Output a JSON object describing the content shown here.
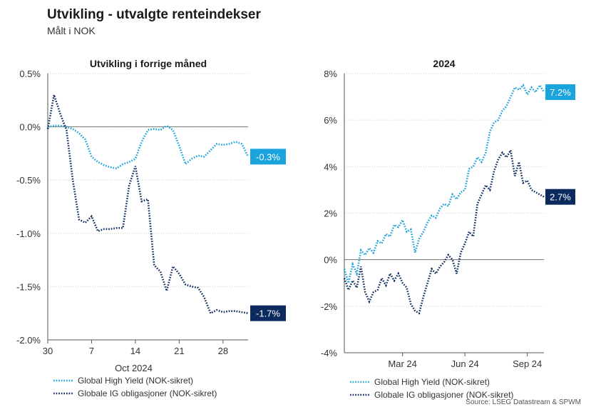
{
  "title": "Utvikling - utvalgte renteindekser",
  "subtitle": "Målt i NOK",
  "source": "Source: LSEG Datastream & SPWM",
  "colors": {
    "hy": "#1aa3dd",
    "ig": "#0b2a5e",
    "grid": "#cccccc",
    "zero": "#777777"
  },
  "chart_data": [
    {
      "type": "line",
      "title": "Utvikling i forrige måned",
      "xlabel": "Oct 2024",
      "ylabel": "",
      "ylim": [
        -2.0,
        0.5
      ],
      "xlim": [
        0,
        32
      ],
      "y_ticks": [
        0.5,
        0.0,
        -0.5,
        -1.0,
        -1.5,
        -2.0
      ],
      "y_tick_labels": [
        "0.5%",
        "0.0%",
        "-0.5%",
        "-1.0%",
        "-1.5%",
        "-2.0%"
      ],
      "x_ticks": [
        0,
        7,
        14,
        21,
        28
      ],
      "x_tick_labels": [
        "30",
        "7",
        "14",
        "21",
        "28"
      ],
      "series": [
        {
          "name": "Global High Yield (NOK-sikret)",
          "color": "#1aa3dd",
          "end_label": "-0.3%",
          "x": [
            0,
            1,
            2,
            3,
            4,
            5,
            6,
            7,
            8,
            9,
            10,
            11,
            12,
            13,
            14,
            15,
            16,
            17,
            18,
            19,
            20,
            21,
            22,
            23,
            24,
            25,
            26,
            27,
            28,
            29,
            30,
            31,
            32
          ],
          "y": [
            0.0,
            0.01,
            0.01,
            0.0,
            -0.02,
            -0.06,
            -0.12,
            -0.28,
            -0.33,
            -0.36,
            -0.38,
            -0.39,
            -0.35,
            -0.33,
            -0.3,
            -0.14,
            -0.03,
            -0.02,
            -0.03,
            0.01,
            -0.03,
            -0.18,
            -0.35,
            -0.3,
            -0.27,
            -0.28,
            -0.22,
            -0.16,
            -0.17,
            -0.16,
            -0.14,
            -0.16,
            -0.28
          ]
        },
        {
          "name": "Globale IG obligasjoner (NOK-sikret)",
          "color": "#0b2a5e",
          "end_label": "-1.7%",
          "x": [
            0,
            1,
            2,
            3,
            4,
            5,
            6,
            7,
            8,
            9,
            10,
            11,
            12,
            13,
            14,
            15,
            16,
            17,
            18,
            19,
            20,
            21,
            22,
            23,
            24,
            25,
            26,
            27,
            28,
            29,
            30,
            31,
            32
          ],
          "y": [
            -0.02,
            0.3,
            0.12,
            -0.03,
            -0.5,
            -0.87,
            -0.9,
            -0.84,
            -0.98,
            -0.96,
            -0.96,
            -0.95,
            -0.95,
            -0.55,
            -0.37,
            -0.7,
            -0.68,
            -1.3,
            -1.36,
            -1.54,
            -1.31,
            -1.38,
            -1.48,
            -1.5,
            -1.51,
            -1.6,
            -1.75,
            -1.72,
            -1.74,
            -1.73,
            -1.73,
            -1.74,
            -1.75
          ]
        }
      ]
    },
    {
      "type": "line",
      "title": "2024",
      "xlabel": "",
      "ylabel": "",
      "ylim": [
        -4,
        8
      ],
      "xlim": [
        0,
        9.6
      ],
      "y_ticks": [
        8,
        6,
        4,
        2,
        0,
        -2,
        -4
      ],
      "y_tick_labels": [
        "8%",
        "6%",
        "4%",
        "2%",
        "0%",
        "-2%",
        "-4%"
      ],
      "x_ticks": [
        2.8,
        5.8,
        8.8
      ],
      "x_tick_labels": [
        "Mar 24",
        "Jun 24",
        "Sep 24"
      ],
      "series": [
        {
          "name": "Global High Yield (NOK-sikret)",
          "color": "#1aa3dd",
          "end_label": "7.2%",
          "x": [
            0,
            0.2,
            0.4,
            0.6,
            0.8,
            1.0,
            1.2,
            1.4,
            1.6,
            1.8,
            2.0,
            2.2,
            2.4,
            2.6,
            2.8,
            3.0,
            3.2,
            3.4,
            3.6,
            3.8,
            4.0,
            4.2,
            4.4,
            4.6,
            4.8,
            5.0,
            5.2,
            5.4,
            5.6,
            5.8,
            6.0,
            6.2,
            6.4,
            6.6,
            6.8,
            7.0,
            7.2,
            7.4,
            7.6,
            7.8,
            8.0,
            8.2,
            8.4,
            8.6,
            8.8,
            9.0,
            9.2,
            9.4,
            9.6
          ],
          "y": [
            -0.4,
            -1.0,
            -0.2,
            -0.6,
            0.4,
            0.2,
            0.5,
            0.3,
            0.8,
            0.7,
            1.1,
            1.0,
            1.5,
            1.4,
            1.7,
            1.2,
            1.3,
            0.3,
            0.9,
            1.2,
            1.6,
            1.9,
            1.8,
            2.2,
            2.4,
            2.3,
            2.8,
            2.6,
            2.9,
            3.0,
            3.9,
            4.0,
            4.4,
            4.2,
            4.6,
            5.5,
            5.9,
            6.0,
            6.4,
            6.6,
            7.0,
            7.4,
            7.3,
            7.5,
            7.1,
            7.4,
            7.2,
            7.5,
            7.2
          ]
        },
        {
          "name": "Globale IG obligasjoner (NOK-sikret)",
          "color": "#0b2a5e",
          "end_label": "2.7%",
          "x": [
            0,
            0.2,
            0.4,
            0.6,
            0.8,
            1.0,
            1.2,
            1.4,
            1.6,
            1.8,
            2.0,
            2.2,
            2.4,
            2.6,
            2.8,
            3.0,
            3.2,
            3.4,
            3.6,
            3.8,
            4.0,
            4.2,
            4.4,
            4.6,
            4.8,
            5.0,
            5.2,
            5.4,
            5.6,
            5.8,
            6.0,
            6.2,
            6.4,
            6.6,
            6.8,
            7.0,
            7.2,
            7.4,
            7.6,
            7.8,
            8.0,
            8.2,
            8.4,
            8.6,
            8.8,
            9.0,
            9.2,
            9.4,
            9.6
          ],
          "y": [
            -0.8,
            -1.3,
            -0.9,
            -1.2,
            -0.3,
            -1.4,
            -1.8,
            -1.4,
            -1.3,
            -0.8,
            -1.1,
            -0.6,
            -0.9,
            -0.6,
            -1.0,
            -1.2,
            -1.9,
            -2.2,
            -2.3,
            -1.6,
            -1.0,
            -0.4,
            -0.6,
            -0.3,
            -0.1,
            0.2,
            0.0,
            -0.6,
            0.3,
            0.7,
            1.2,
            1.0,
            2.4,
            2.8,
            3.2,
            3.0,
            3.8,
            4.3,
            4.6,
            4.4,
            4.7,
            3.6,
            4.2,
            3.3,
            3.4,
            3.0,
            2.9,
            2.8,
            2.7
          ]
        }
      ]
    }
  ]
}
